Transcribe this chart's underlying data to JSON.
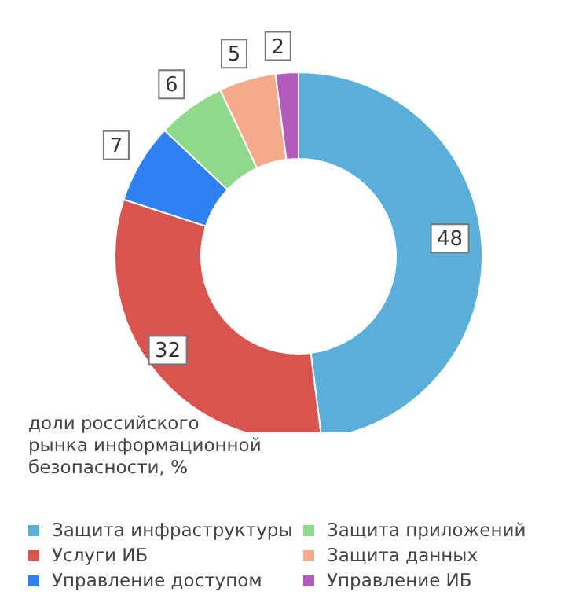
{
  "chart_data": {
    "type": "donut",
    "categories": [
      "Защита инфраструктуры",
      "Услуги ИБ",
      "Управление доступом",
      "Защита приложений",
      "Защита данных",
      "Управление ИБ"
    ],
    "values": [
      48,
      32,
      7,
      6,
      5,
      2
    ],
    "colors": [
      "#5aafd9",
      "#d9534f",
      "#2f80f0",
      "#8ed98a",
      "#f7aa8a",
      "#b15bbd"
    ],
    "data_labels": true,
    "legend": "bottom",
    "annotations": [
      "доли российского рынка информационной безопасности, %"
    ]
  }
}
